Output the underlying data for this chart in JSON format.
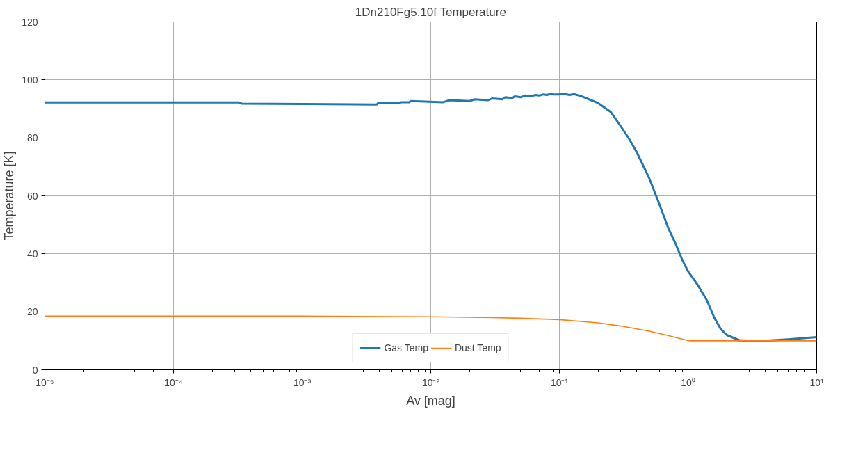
{
  "chart_data": {
    "type": "line",
    "title": "1Dn210Fg5.10f Temperature",
    "xlabel": "Av [mag]",
    "ylabel": "Temperature [K]",
    "log": "x",
    "grid": true,
    "legend": "bottom",
    "xlim": [
      1e-05,
      10
    ],
    "ylim": [
      0,
      120
    ],
    "xticks": [
      {
        "value": 1e-05,
        "label": "10⁻⁵"
      },
      {
        "value": 0.0001,
        "label": "10⁻⁴"
      },
      {
        "value": 0.001,
        "label": "10⁻³"
      },
      {
        "value": 0.01,
        "label": "10⁻²"
      },
      {
        "value": 0.1,
        "label": "10⁻¹"
      },
      {
        "value": 1,
        "label": "10⁰"
      },
      {
        "value": 10,
        "label": "10¹"
      }
    ],
    "yticks": [
      0,
      20,
      40,
      60,
      80,
      100,
      120
    ],
    "series": [
      {
        "name": "Gas Temp",
        "color": "#1f77b4",
        "x": [
          1e-05,
          0.0001,
          0.00032,
          0.00034,
          0.001,
          0.0038,
          0.0039,
          0.0056,
          0.0058,
          0.0068,
          0.007,
          0.0125,
          0.014,
          0.02,
          0.022,
          0.028,
          0.03,
          0.036,
          0.038,
          0.043,
          0.045,
          0.05,
          0.054,
          0.06,
          0.065,
          0.07,
          0.075,
          0.08,
          0.085,
          0.09,
          0.1,
          0.105,
          0.12,
          0.13,
          0.15,
          0.17,
          0.2,
          0.25,
          0.3,
          0.35,
          0.4,
          0.5,
          0.6,
          0.7,
          0.8,
          0.9,
          1.0,
          1.2,
          1.4,
          1.6,
          1.8,
          2,
          2.5,
          3,
          4,
          6,
          10
        ],
        "values": [
          92.2,
          92.2,
          92.2,
          91.8,
          91.7,
          91.5,
          92.0,
          91.9,
          92.3,
          92.3,
          92.7,
          92.3,
          93.0,
          92.7,
          93.3,
          93.0,
          93.6,
          93.3,
          94.0,
          93.7,
          94.3,
          94.0,
          94.6,
          94.3,
          94.8,
          94.6,
          95.0,
          94.8,
          95.2,
          95.0,
          95.0,
          95.3,
          94.8,
          95.1,
          94.3,
          93.3,
          92.0,
          89,
          84,
          79.5,
          75,
          66,
          57,
          49,
          43.5,
          38,
          34,
          29,
          24,
          18,
          14,
          12,
          10.2,
          10,
          10,
          10.5,
          11.3
        ]
      },
      {
        "name": "Dust Temp",
        "color": "#ff7f0e",
        "x": [
          1e-05,
          0.001,
          0.01,
          0.03,
          0.05,
          0.1,
          0.2,
          0.3,
          0.5,
          0.7,
          1.0,
          1.05,
          10
        ],
        "values": [
          18.5,
          18.5,
          18.3,
          18.0,
          17.8,
          17.3,
          16.2,
          15.1,
          13.3,
          11.8,
          10.1,
          10.0,
          10.0
        ]
      }
    ]
  }
}
